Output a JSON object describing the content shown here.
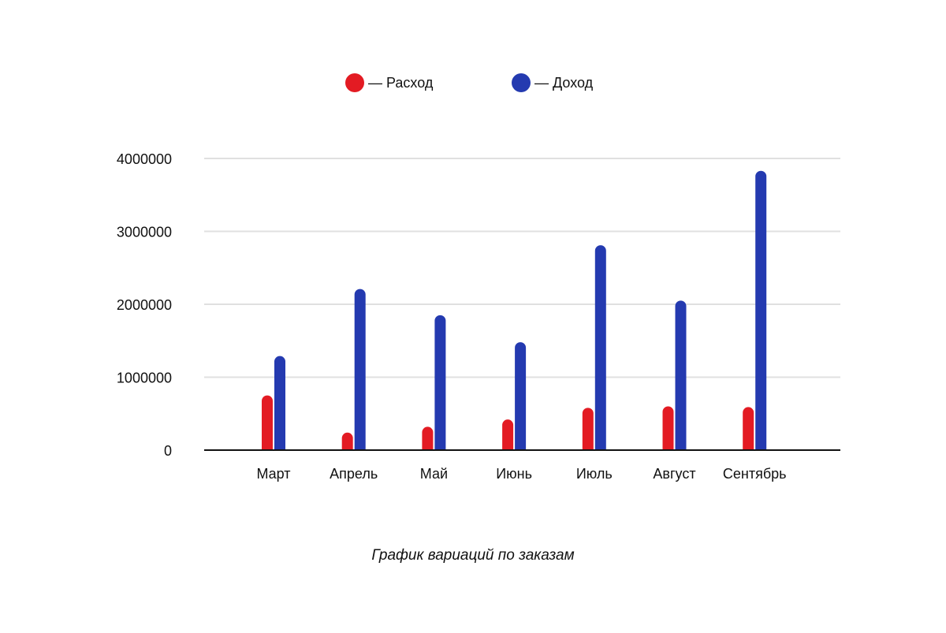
{
  "chart_data": {
    "type": "bar",
    "title": "График вариаций по заказам",
    "xlabel": "",
    "ylabel": "",
    "categories": [
      "Март",
      "Апрель",
      "Май",
      "Июнь",
      "Июль",
      "Август",
      "Сентябрь"
    ],
    "series": [
      {
        "name": "— Расход",
        "color": "#e31b23",
        "values": [
          750000,
          240000,
          320000,
          420000,
          580000,
          600000,
          590000
        ]
      },
      {
        "name": "— Доход",
        "color": "#243ab0",
        "values": [
          1290000,
          2210000,
          1850000,
          1480000,
          2810000,
          2050000,
          3830000
        ]
      }
    ],
    "ylim": [
      0,
      4000000
    ],
    "yticks": [
      "0",
      "1000000",
      "2000000",
      "3000000",
      "4000000"
    ],
    "ytick_values": [
      0,
      1000000,
      2000000,
      3000000,
      4000000
    ],
    "grid": true,
    "legend_position": "top-center"
  }
}
